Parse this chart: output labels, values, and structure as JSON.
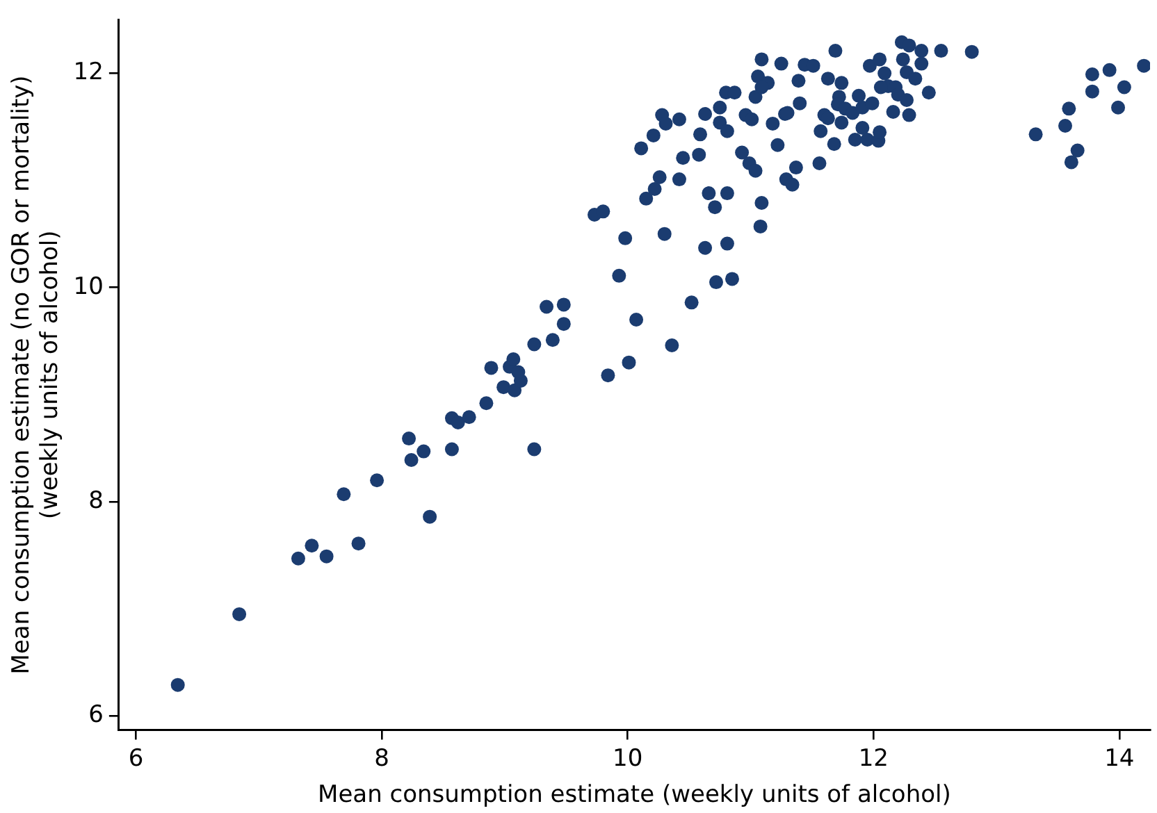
{
  "chart_data": {
    "type": "scatter",
    "xlabel": "Mean consumption estimate (weekly units of alcohol)",
    "ylabel": "Mean consumption estimate (no GOR or mortality)\n(weekly units of alcohol)",
    "xlim": [
      5.86,
      14.25
    ],
    "xticks": [
      6,
      8,
      10,
      12,
      14
    ],
    "ylim": [
      5.87,
      12.5
    ],
    "yticks": [
      6,
      8,
      10,
      12
    ],
    "grid": false,
    "legend": false,
    "marker": "circle",
    "series": [
      {
        "color": "#1b3c70",
        "x": [
          6.34,
          6.84,
          7.32,
          7.43,
          7.55,
          7.81,
          7.69,
          7.96,
          8.22,
          8.24,
          8.34,
          8.39,
          8.57,
          8.62,
          8.57,
          8.71,
          8.85,
          8.89,
          8.99,
          9.08,
          9.04,
          9.07,
          9.13,
          9.11,
          9.24,
          9.39,
          9.34,
          9.48,
          9.48,
          9.24,
          9.84,
          10.01,
          10.36,
          10.07,
          10.52,
          9.93,
          9.98,
          10.3,
          10.63,
          10.72,
          10.85,
          10.81,
          9.73,
          9.8,
          10.66,
          10.81,
          10.71,
          11.09,
          11.08,
          10.15,
          10.22,
          10.26,
          10.42,
          10.45,
          10.58,
          10.11,
          10.21,
          10.28,
          10.31,
          10.42,
          10.59,
          10.63,
          10.75,
          10.75,
          10.81,
          10.8,
          10.87,
          10.93,
          10.99,
          11.04,
          10.96,
          11.01,
          11.18,
          11.22,
          11.04,
          11.06,
          11.09,
          11.14,
          11.09,
          11.25,
          11.28,
          11.3,
          11.29,
          11.34,
          11.37,
          11.4,
          11.39,
          11.44,
          11.51,
          11.69,
          11.56,
          11.68,
          11.63,
          11.74,
          11.72,
          11.6,
          11.57,
          11.71,
          11.77,
          11.83,
          11.74,
          11.88,
          11.91,
          11.99,
          11.91,
          11.85,
          11.95,
          12.04,
          12.05,
          11.97,
          12.05,
          12.09,
          12.12,
          12.06,
          12.18,
          12.16,
          12.2,
          12.27,
          12.29,
          12.23,
          12.29,
          12.39,
          12.39,
          12.24,
          12.27,
          12.34,
          12.45,
          12.55,
          12.8,
          13.32,
          13.56,
          13.59,
          13.66,
          13.61,
          13.78,
          13.78,
          13.92,
          14.04,
          13.99,
          14.2,
          11.63
        ],
        "values": [
          6.29,
          6.95,
          7.47,
          7.59,
          7.49,
          7.61,
          8.07,
          8.2,
          8.59,
          8.39,
          8.47,
          7.86,
          8.78,
          8.74,
          8.49,
          8.79,
          8.92,
          9.25,
          9.07,
          9.04,
          9.26,
          9.33,
          9.13,
          9.21,
          9.47,
          9.51,
          9.82,
          9.84,
          9.66,
          8.49,
          9.18,
          9.3,
          9.46,
          9.7,
          9.86,
          10.11,
          10.46,
          10.5,
          10.37,
          10.05,
          10.08,
          10.41,
          10.68,
          10.71,
          10.88,
          10.88,
          10.75,
          10.79,
          10.57,
          10.83,
          10.92,
          11.03,
          11.01,
          11.21,
          11.24,
          11.3,
          11.42,
          11.61,
          11.53,
          11.57,
          11.43,
          11.62,
          11.68,
          11.54,
          11.46,
          11.82,
          11.82,
          11.26,
          11.16,
          11.09,
          11.61,
          11.57,
          11.53,
          11.33,
          11.78,
          11.97,
          12.13,
          11.91,
          11.87,
          12.09,
          11.62,
          11.63,
          11.01,
          10.96,
          11.12,
          11.72,
          11.93,
          12.08,
          12.07,
          12.21,
          11.16,
          11.34,
          11.95,
          11.91,
          11.78,
          11.61,
          11.46,
          11.71,
          11.67,
          11.63,
          11.54,
          11.79,
          11.68,
          11.72,
          11.49,
          11.38,
          11.38,
          11.37,
          11.45,
          12.07,
          12.13,
          12.0,
          11.88,
          11.87,
          11.87,
          11.64,
          11.8,
          11.75,
          11.61,
          12.29,
          12.26,
          12.21,
          12.09,
          12.13,
          12.01,
          11.95,
          11.82,
          12.21,
          12.2,
          11.43,
          11.51,
          11.67,
          11.28,
          11.17,
          11.99,
          11.83,
          12.03,
          11.87,
          11.68,
          12.07,
          11.58
        ]
      }
    ]
  }
}
